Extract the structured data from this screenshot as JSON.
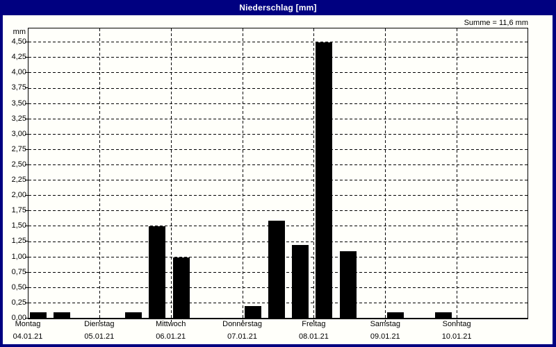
{
  "window": {
    "title": "Niederschlag [mm]"
  },
  "colors": {
    "titlebar_bg": "#000080",
    "titlebar_text": "#ffffff",
    "frame": "#000080",
    "plot_bg": "#fffffa",
    "bar": "#000000",
    "grid": "#000000",
    "text": "#000000"
  },
  "chart_data": {
    "type": "bar",
    "title": "Niederschlag [mm]",
    "sum_label": "Summe = 11,6 mm",
    "sum_mm": 11.6,
    "unit": "mm",
    "ylabel": "mm",
    "ylim": [
      0,
      4.73
    ],
    "ytick_step": 0.25,
    "ytick_labels": [
      "0,00",
      "0,25",
      "0,50",
      "0,75",
      "1,00",
      "1,25",
      "1,50",
      "1,75",
      "2,00",
      "2,25",
      "2,50",
      "2,75",
      "3,00",
      "3,25",
      "3,50",
      "3,75",
      "4,00",
      "4,25",
      "4,50"
    ],
    "grid": true,
    "grid_style": "dashed",
    "legend": "none",
    "days": [
      {
        "name": "Montag",
        "date": "04.01.21"
      },
      {
        "name": "Dienstag",
        "date": "05.01.21"
      },
      {
        "name": "Mittwoch",
        "date": "06.01.21"
      },
      {
        "name": "Donnerstag",
        "date": "07.01.21"
      },
      {
        "name": "Freitag",
        "date": "08.01.21"
      },
      {
        "name": "Samstag",
        "date": "09.01.21"
      },
      {
        "name": "Sonntag",
        "date": "10.01.21"
      }
    ],
    "slots_per_day": 3,
    "bars": [
      {
        "slot": 0,
        "day": "Montag",
        "slot_of_day": 0,
        "value": 0.1
      },
      {
        "slot": 1,
        "day": "Montag",
        "slot_of_day": 1,
        "value": 0.1
      },
      {
        "slot": 4,
        "day": "Dienstag",
        "slot_of_day": 1,
        "value": 0.1
      },
      {
        "slot": 5,
        "day": "Dienstag",
        "slot_of_day": 2,
        "value": 1.5
      },
      {
        "slot": 6,
        "day": "Mittwoch",
        "slot_of_day": 0,
        "value": 1.0
      },
      {
        "slot": 9,
        "day": "Donnerstag",
        "slot_of_day": 0,
        "value": 0.2
      },
      {
        "slot": 10,
        "day": "Donnerstag",
        "slot_of_day": 1,
        "value": 1.6
      },
      {
        "slot": 11,
        "day": "Donnerstag",
        "slot_of_day": 2,
        "value": 1.2
      },
      {
        "slot": 12,
        "day": "Freitag",
        "slot_of_day": 0,
        "value": 4.5
      },
      {
        "slot": 13,
        "day": "Freitag",
        "slot_of_day": 1,
        "value": 1.1
      },
      {
        "slot": 15,
        "day": "Samstag",
        "slot_of_day": 0,
        "value": 0.1
      },
      {
        "slot": 17,
        "day": "Samstag",
        "slot_of_day": 2,
        "value": 0.1
      }
    ]
  }
}
